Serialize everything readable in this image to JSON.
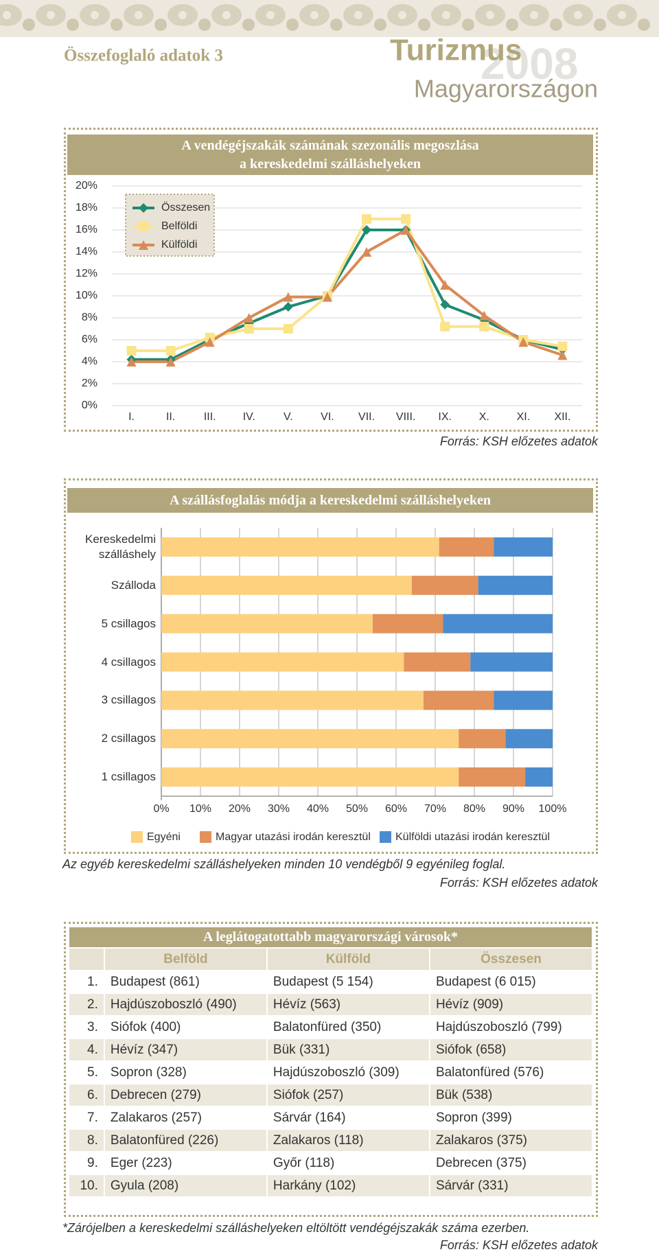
{
  "header": {
    "section": "Összefoglaló adatok 3",
    "title": "Turizmus",
    "year": "2008",
    "subtitle": "Magyarországon"
  },
  "chart_data": [
    {
      "type": "line",
      "title": "A vendégéjszakák számának szezonális megoszlása\na kereskedelmi szálláshelyeken",
      "categories": [
        "I.",
        "II.",
        "III.",
        "IV.",
        "V.",
        "VI.",
        "VII.",
        "VIII.",
        "IX.",
        "X.",
        "XI.",
        "XII."
      ],
      "series": [
        {
          "name": "Összesen",
          "color": "#1f8a70",
          "marker": "diamond",
          "values": [
            4.2,
            4.2,
            6,
            7.5,
            9,
            10,
            16,
            16,
            9.2,
            7.8,
            6,
            5.1
          ]
        },
        {
          "name": "Belföldi",
          "color": "#fbe38a",
          "marker": "square",
          "values": [
            5,
            5,
            6.2,
            7,
            7,
            10,
            17,
            17,
            7.2,
            7.2,
            6,
            5.4
          ]
        },
        {
          "name": "Külföldi",
          "color": "#d98a55",
          "marker": "triangle",
          "values": [
            4,
            4,
            5.8,
            8,
            9.9,
            9.9,
            14,
            16,
            11,
            8.2,
            5.8,
            4.6
          ]
        }
      ],
      "ylim": [
        0,
        20
      ],
      "yticks": [
        {
          "value": 0,
          "label": "0%"
        },
        {
          "value": 2,
          "label": "2%"
        },
        {
          "value": 4,
          "label": "4%"
        },
        {
          "value": 6,
          "label": "6%"
        },
        {
          "value": 8,
          "label": "8%"
        },
        {
          "value": 10,
          "label": "10%"
        },
        {
          "value": 12,
          "label": "12%"
        },
        {
          "value": 14,
          "label": "14%"
        },
        {
          "value": 16,
          "label": "16%"
        },
        {
          "value": 18,
          "label": "18%"
        },
        {
          "value": 20,
          "label": "20%"
        }
      ],
      "grid": true,
      "legend": "top-left",
      "source": "Forrás: KSH előzetes adatok"
    },
    {
      "type": "bar",
      "orientation": "horizontal",
      "stacked": true,
      "title": "A szállásfoglalás módja a kereskedelmi szálláshelyeken",
      "categories": [
        "Kereskedelmi\nszálláshely",
        "Szálloda",
        "5 csillagos",
        "4 csillagos",
        "3 csillagos",
        "2 csillagos",
        "1 csillagos"
      ],
      "series": [
        {
          "name": "Egyéni",
          "color": "#fdd17f",
          "values": [
            71,
            64,
            54,
            62,
            67,
            76,
            76
          ]
        },
        {
          "name": "Magyar utazási irodán keresztül",
          "color": "#e2925a",
          "values": [
            14,
            17,
            18,
            17,
            18,
            12,
            17
          ]
        },
        {
          "name": "Külföldi utazási irodán keresztül",
          "color": "#4a8ccf",
          "values": [
            15,
            19,
            28,
            21,
            15,
            12,
            7
          ]
        }
      ],
      "xlim": [
        0,
        100
      ],
      "xticks": [
        {
          "value": 0,
          "label": "0%"
        },
        {
          "value": 10,
          "label": "10%"
        },
        {
          "value": 20,
          "label": "20%"
        },
        {
          "value": 30,
          "label": "30%"
        },
        {
          "value": 40,
          "label": "40%"
        },
        {
          "value": 50,
          "label": "50%"
        },
        {
          "value": 60,
          "label": "60%"
        },
        {
          "value": 70,
          "label": "70%"
        },
        {
          "value": 80,
          "label": "80%"
        },
        {
          "value": 90,
          "label": "90%"
        },
        {
          "value": 100,
          "label": "100%"
        }
      ],
      "grid": true,
      "legend": "bottom",
      "note": "Az egyéb kereskedelmi szálláshelyeken minden 10 vendégből 9 egyénileg foglal.",
      "source": "Forrás: KSH előzetes adatok"
    }
  ],
  "table": {
    "title": "A leglátogatottabb magyarországi városok*",
    "columns": [
      "Belföld",
      "Külföld",
      "Összesen"
    ],
    "rows": [
      [
        "1.",
        "Budapest (861)",
        "Budapest (5 154)",
        "Budapest (6 015)"
      ],
      [
        "2.",
        "Hajdúszoboszló (490)",
        "Hévíz (563)",
        "Hévíz (909)"
      ],
      [
        "3.",
        "Siófok (400)",
        "Balatonfüred (350)",
        "Hajdúszoboszló (799)"
      ],
      [
        "4.",
        "Hévíz (347)",
        "Bük (331)",
        "Siófok (658)"
      ],
      [
        "5.",
        "Sopron (328)",
        "Hajdúszoboszló (309)",
        "Balatonfüred (576)"
      ],
      [
        "6.",
        "Debrecen (279)",
        "Siófok (257)",
        "Bük (538)"
      ],
      [
        "7.",
        "Zalakaros (257)",
        "Sárvár (164)",
        "Sopron (399)"
      ],
      [
        "8.",
        "Balatonfüred (226)",
        "Zalakaros (118)",
        "Zalakaros (375)"
      ],
      [
        "9.",
        "Eger (223)",
        "Győr (118)",
        "Debrecen (375)"
      ],
      [
        "10.",
        "Gyula (208)",
        "Harkány (102)",
        "Sárvár (331)"
      ]
    ],
    "footnote": "*Zárójelben a kereskedelmi szálláshelyeken eltöltött vendégéjszakák száma ezerben.",
    "source": "Forrás: KSH előzetes adatok"
  }
}
